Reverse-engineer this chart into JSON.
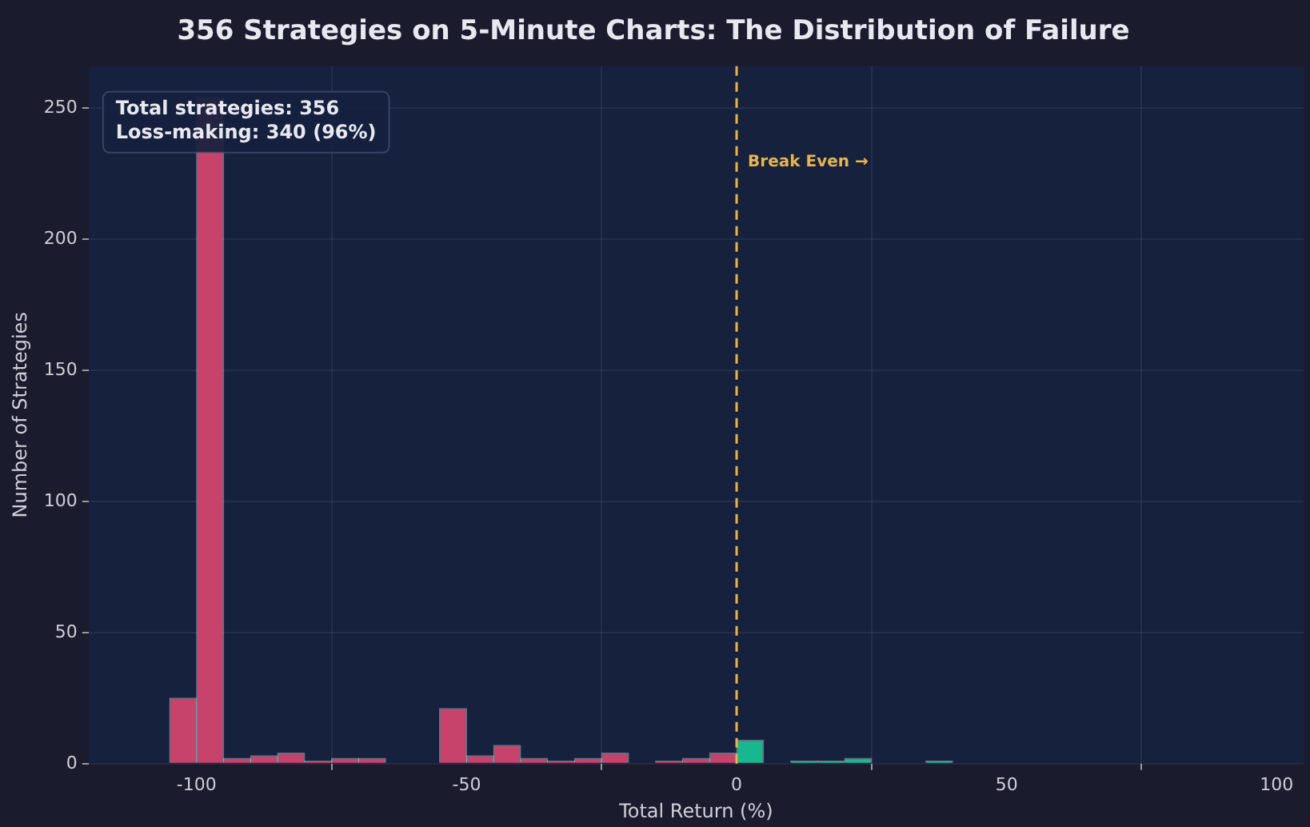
{
  "chart_data": {
    "type": "histogram",
    "title": "356 Strategies on 5-Minute Charts: The Distribution of Failure",
    "xlabel": "Total Return (%)",
    "ylabel": "Number of Strategies",
    "bins": [
      -105,
      -100,
      -95,
      -90,
      -85,
      -80,
      -75,
      -70,
      -65,
      -60,
      -55,
      -50,
      -45,
      -40,
      -35,
      -30,
      -25,
      -20,
      -15,
      -10,
      -5,
      0,
      5,
      10,
      15,
      20,
      25,
      30,
      35,
      40
    ],
    "values": [
      25,
      254,
      2,
      3,
      4,
      1,
      2,
      2,
      0,
      0,
      21,
      3,
      7,
      2,
      1,
      2,
      4,
      0,
      1,
      2,
      4,
      9,
      0,
      1,
      1,
      2,
      0,
      0,
      1
    ],
    "colors": [
      "#c7436b",
      "#c7436b",
      "#c7436b",
      "#c7436b",
      "#c7436b",
      "#c7436b",
      "#c7436b",
      "#c7436b",
      "#c7436b",
      "#c7436b",
      "#c7436b",
      "#c7436b",
      "#c7436b",
      "#c7436b",
      "#c7436b",
      "#c7436b",
      "#c7436b",
      "#c7436b",
      "#c7436b",
      "#c7436b",
      "#c7436b",
      "#17b890",
      "#17b890",
      "#17b890",
      "#17b890",
      "#17b890",
      "#17b890",
      "#17b890",
      "#17b890"
    ],
    "xlim": [
      -120,
      105
    ],
    "xticks": [
      -100,
      -50,
      0,
      50,
      100
    ],
    "ylim": [
      0,
      266
    ],
    "yticks": [
      0,
      50,
      100,
      150,
      200,
      250
    ],
    "grid": true,
    "ref_lines": [
      {
        "axis": "x",
        "value": 0,
        "label": "Break Even →",
        "color": "#e6b450",
        "line_style": "dashed"
      }
    ],
    "annotations": [
      "Total strategies: 356\nLoss-making: 340 (96%)"
    ]
  }
}
